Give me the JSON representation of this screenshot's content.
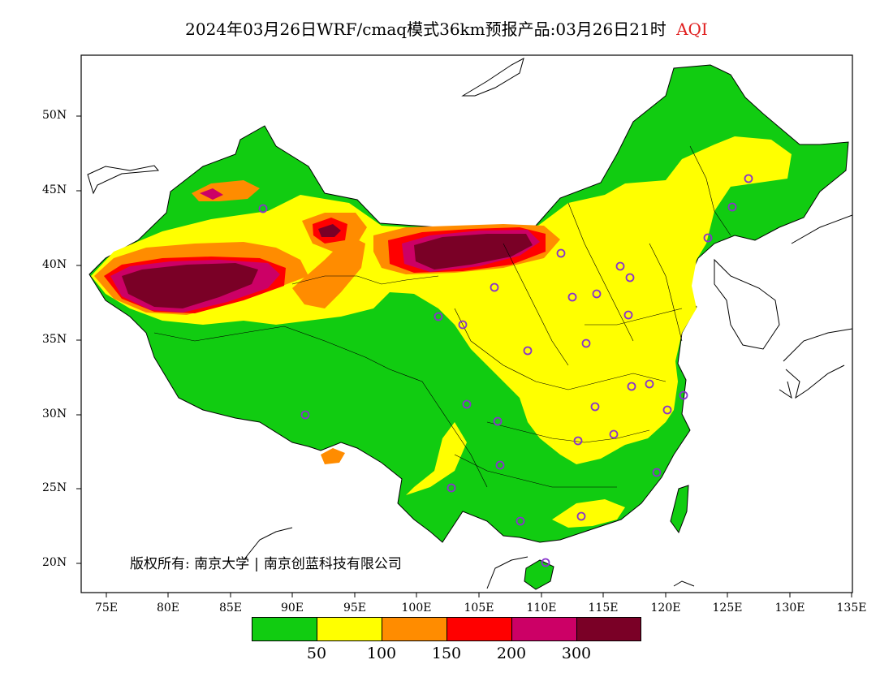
{
  "title": {
    "main": "2024年03月26日WRF/cmaq模式36km预报产品:03月26日21时",
    "variable": "AQI"
  },
  "axes": {
    "lat_labels": [
      "50N",
      "45N",
      "40N",
      "35N",
      "30N",
      "25N",
      "20N"
    ],
    "lon_labels": [
      "75E",
      "80E",
      "85E",
      "90E",
      "95E",
      "100E",
      "105E",
      "110E",
      "115E",
      "120E",
      "125E",
      "130E",
      "135E"
    ],
    "lon_range": [
      73,
      135
    ],
    "lat_range": [
      18,
      54
    ]
  },
  "copyright": {
    "label": "版权所有:",
    "org1": "南京大学",
    "org2": "南京创蓝科技有限公司"
  },
  "legend": {
    "colors": [
      "#11cc11",
      "#ffff00",
      "#ff8c00",
      "#ff0000",
      "#cc0066",
      "#7a0026"
    ],
    "thresholds": [
      "50",
      "100",
      "150",
      "200",
      "300"
    ]
  },
  "colors": {
    "background": "#ffffff",
    "title_highlight": "#e02020",
    "station_marker": "#8833cc"
  }
}
